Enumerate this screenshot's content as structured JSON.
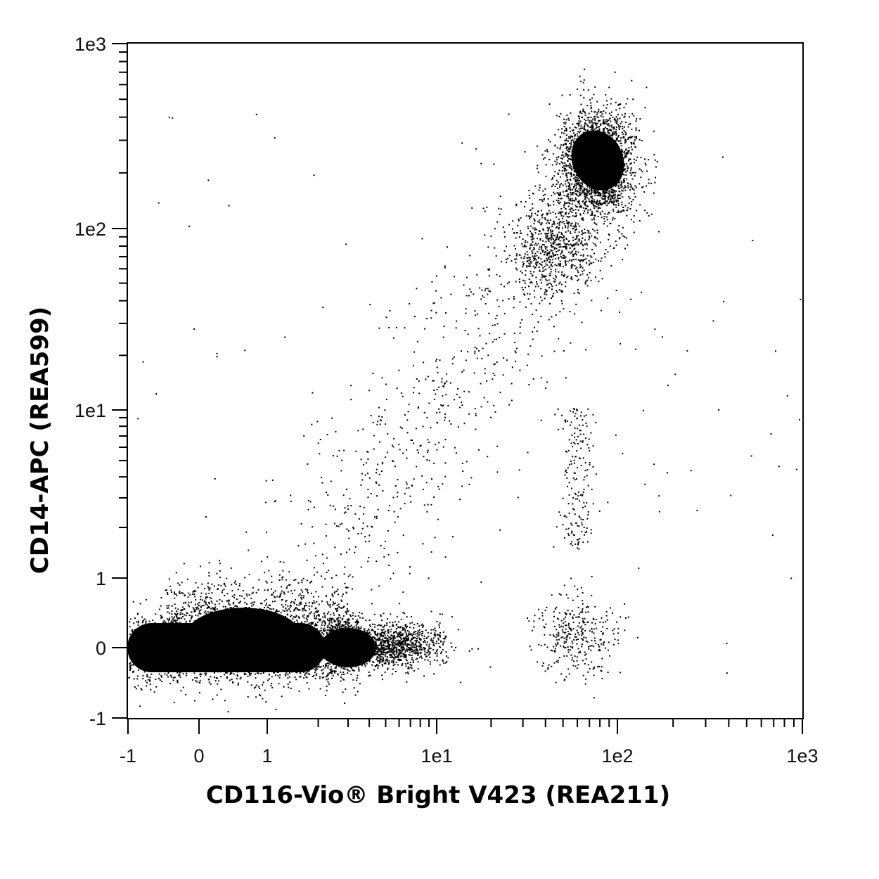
{
  "chart_data": {
    "type": "scatter",
    "title": "",
    "xlabel": "CD116-Vio® Bright V423 (REA211)",
    "ylabel": "CD14-APC (REA599)",
    "x_scale": "biexponential",
    "y_scale": "biexponential",
    "xlim": [
      -1,
      1000
    ],
    "ylim": [
      -1,
      1000
    ],
    "grid": false,
    "legend": "none",
    "point_color": "#000000",
    "x_tick_labels": [
      {
        "value": -1,
        "label": "-1"
      },
      {
        "value": 0,
        "label": "0"
      },
      {
        "value": 1,
        "label": "1"
      },
      {
        "value": 10,
        "label": "1e1"
      },
      {
        "value": 100,
        "label": "1e2"
      },
      {
        "value": 1000,
        "label": "1e3"
      }
    ],
    "y_tick_labels": [
      {
        "value": -1,
        "label": "-1"
      },
      {
        "value": 0,
        "label": "0"
      },
      {
        "value": 1,
        "label": "1"
      },
      {
        "value": 10,
        "label": "1e1"
      },
      {
        "value": 100,
        "label": "1e2"
      },
      {
        "value": 1000,
        "label": "1e3"
      }
    ],
    "x_minor_ticks": [
      2,
      3,
      4,
      5,
      6,
      7,
      8,
      9,
      20,
      30,
      40,
      50,
      60,
      70,
      80,
      90,
      200,
      300,
      400,
      500,
      600,
      700,
      800,
      900
    ],
    "y_minor_ticks": [
      2,
      3,
      4,
      5,
      6,
      7,
      8,
      9,
      20,
      30,
      40,
      50,
      60,
      70,
      80,
      90,
      200,
      300,
      400,
      500,
      600,
      700,
      800,
      900
    ],
    "populations": [
      {
        "name": "",
        "x_center": 0.3,
        "y_center": 0.0,
        "x_range": [
          -1,
          3
        ],
        "y_range": [
          -0.5,
          0.9
        ],
        "relative_density": "very high"
      },
      {
        "name": "",
        "x_center": 5,
        "y_center": 0.05,
        "x_range": [
          3,
          10
        ],
        "y_range": [
          -0.4,
          0.6
        ],
        "relative_density": "high"
      },
      {
        "name": "",
        "x_center": 80,
        "y_center": 200,
        "x_range": [
          40,
          130
        ],
        "y_range": [
          60,
          400
        ],
        "relative_density": "high"
      },
      {
        "name": "",
        "x_center": 60,
        "y_center": 0.1,
        "x_range": [
          40,
          100
        ],
        "y_range": [
          -0.3,
          1.5
        ],
        "relative_density": "low"
      }
    ]
  }
}
